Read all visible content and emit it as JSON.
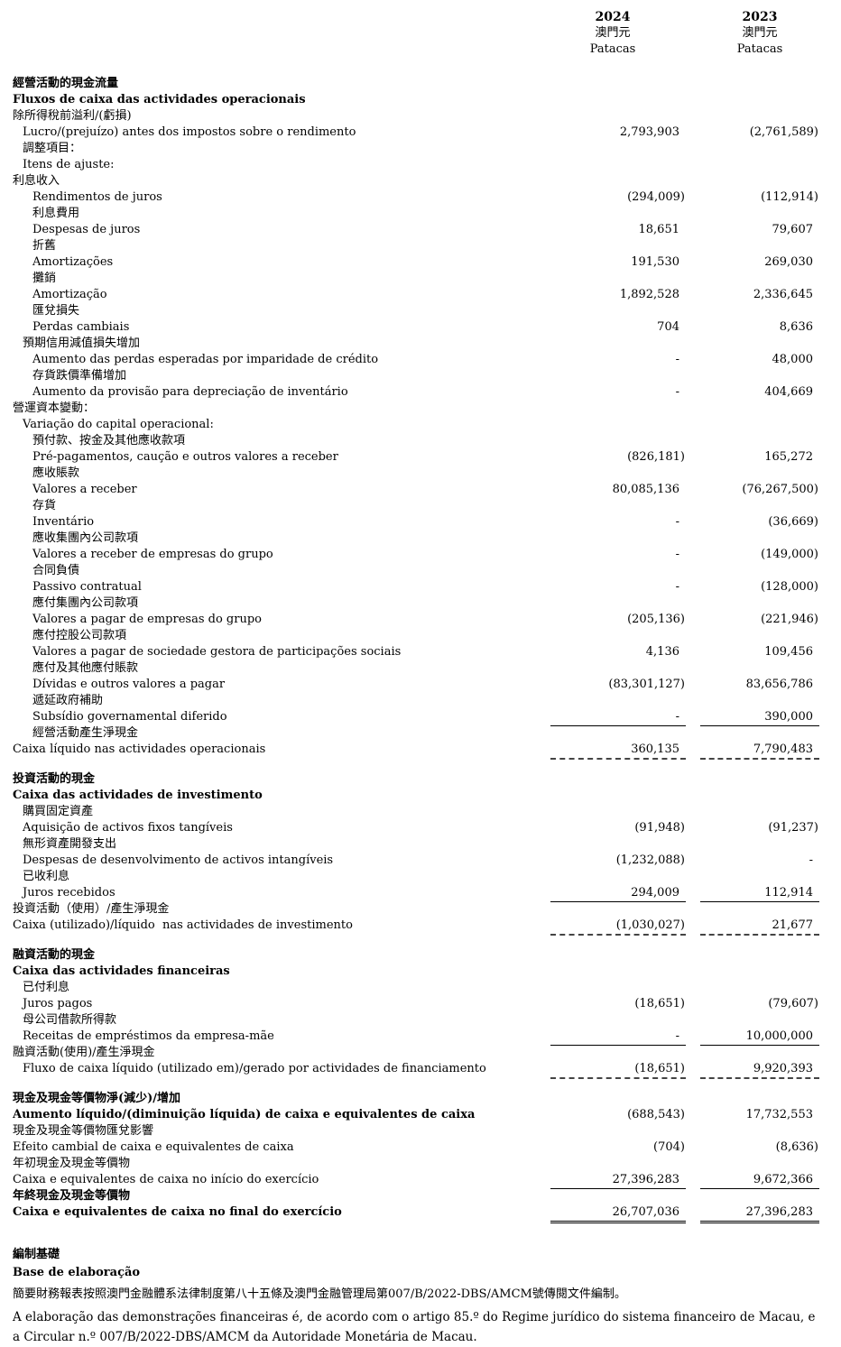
{
  "header": {
    "columns": [
      {
        "year": "2024",
        "currency_zh": "澳門元",
        "currency_en": "Patacas"
      },
      {
        "year": "2023",
        "currency_zh": "澳門元",
        "currency_en": "Patacas"
      }
    ]
  },
  "statement": {
    "rows": [
      {
        "label": "經營活動的現金流量",
        "indent": 0,
        "bold": true
      },
      {
        "label": "Fluxos de caixa das actividades operacionais",
        "indent": 0,
        "bold": true
      },
      {
        "label": "除所得稅前溢利/(虧損)",
        "indent": 0
      },
      {
        "label": "Lucro/(prejuízo) antes dos impostos sobre o rendimento",
        "indent": 1,
        "v1": "2,793,903",
        "v2": "(2,761,589)"
      },
      {
        "label": "調整項目：",
        "indent": 1
      },
      {
        "label": "Itens de ajuste:",
        "indent": 1
      },
      {
        "label": "利息收入",
        "indent": 0
      },
      {
        "label": "Rendimentos de juros",
        "indent": 2,
        "v1": "(294,009)",
        "v2": "(112,914)"
      },
      {
        "label": "利息費用",
        "indent": 2
      },
      {
        "label": "Despesas de juros",
        "indent": 2,
        "v1": "18,651",
        "v2": "79,607"
      },
      {
        "label": "折舊",
        "indent": 2
      },
      {
        "label": "Amortizações",
        "indent": 2,
        "v1": "191,530",
        "v2": "269,030"
      },
      {
        "label": "攤銷",
        "indent": 2
      },
      {
        "label": "Amortização",
        "indent": 2,
        "v1": "1,892,528",
        "v2": "2,336,645"
      },
      {
        "label": "匯兌損失",
        "indent": 2
      },
      {
        "label": "Perdas cambiais",
        "indent": 2,
        "v1": "704",
        "v2": "8,636"
      },
      {
        "label": "預期信用減值損失增加",
        "indent": 1
      },
      {
        "label": "Aumento das perdas esperadas por imparidade de crédito",
        "indent": 2,
        "v1": "-",
        "v2": "48,000"
      },
      {
        "label": "存貨跌價準備增加",
        "indent": 2
      },
      {
        "label": "Aumento da provisão para depreciação de inventário",
        "indent": 2,
        "v1": "-",
        "v2": "404,669"
      },
      {
        "label": "營運資本變動：",
        "indent": 0
      },
      {
        "label": "Variação do capital operacional:",
        "indent": 1
      },
      {
        "label": "預付款、按金及其他應收款項",
        "indent": 2
      },
      {
        "label": "Pré-pagamentos, caução e outros valores a receber",
        "indent": 2,
        "v1": "(826,181)",
        "v2": "165,272"
      },
      {
        "label": "應收賬款",
        "indent": 2
      },
      {
        "label": "Valores a receber",
        "indent": 2,
        "v1": "80,085,136",
        "v2": "(76,267,500)"
      },
      {
        "label": "存貨",
        "indent": 2
      },
      {
        "label": "Inventário",
        "indent": 2,
        "v1": "-",
        "v2": "(36,669)"
      },
      {
        "label": "應收集團內公司款項",
        "indent": 2
      },
      {
        "label": "Valores a receber de empresas do grupo",
        "indent": 2,
        "v1": "-",
        "v2": "(149,000)"
      },
      {
        "label": "合同負債",
        "indent": 2
      },
      {
        "label": "Passivo contratual",
        "indent": 2,
        "v1": "-",
        "v2": "(128,000)"
      },
      {
        "label": "應付集團內公司款項",
        "indent": 2
      },
      {
        "label": "Valores a pagar de empresas do grupo",
        "indent": 2,
        "v1": "(205,136)",
        "v2": "(221,946)"
      },
      {
        "label": "應付控股公司款項",
        "indent": 2
      },
      {
        "label": "Valores a pagar de sociedade gestora de participações sociais",
        "indent": 2,
        "v1": "4,136",
        "v2": "109,456"
      },
      {
        "label": "應付及其他應付賬款",
        "indent": 2
      },
      {
        "label": "Dívidas e outros valores a pagar",
        "indent": 2,
        "v1": "(83,301,127)",
        "v2": "83,656,786"
      },
      {
        "label": "遞延政府補助",
        "indent": 2
      },
      {
        "label": "Subsídio governamental diferido",
        "indent": 2,
        "v1": "-",
        "v2": "390,000",
        "rule": "solid"
      },
      {
        "label": "經營活動產生淨現金",
        "indent": 2
      },
      {
        "label": "Caixa líquido nas actividades operacionais",
        "indent": 0,
        "v1": "360,135",
        "v2": "7,790,483",
        "rule": "dashed"
      },
      {
        "label": "投資活動的現金",
        "indent": 0,
        "bold": true,
        "gap": true
      },
      {
        "label": "Caixa das actividades de investimento",
        "indent": 0,
        "bold": true
      },
      {
        "label": "購買固定資產",
        "indent": 1
      },
      {
        "label": "Aquisição de activos fixos tangíveis",
        "indent": 1,
        "v1": "(91,948)",
        "v2": "(91,237)"
      },
      {
        "label": "無形資產開發支出",
        "indent": 1
      },
      {
        "label": "Despesas de desenvolvimento de activos intangíveis",
        "indent": 1,
        "v1": "(1,232,088)",
        "v2": "-"
      },
      {
        "label": "已收利息",
        "indent": 1
      },
      {
        "label": "Juros recebidos",
        "indent": 1,
        "v1": "294,009",
        "v2": "112,914",
        "rule": "solid"
      },
      {
        "label": "投資活動（使用）/產生淨現金",
        "indent": 0
      },
      {
        "label": "Caixa (utilizado)/líquido  nas actividades de investimento",
        "indent": 0,
        "v1": "(1,030,027)",
        "v2": "21,677",
        "rule": "dashed"
      },
      {
        "label": "融資活動的現金",
        "indent": 0,
        "bold": true,
        "gap": true
      },
      {
        "label": "Caixa das actividades financeiras",
        "indent": 0,
        "bold": true
      },
      {
        "label": "已付利息",
        "indent": 1
      },
      {
        "label": "Juros pagos",
        "indent": 1,
        "v1": "(18,651)",
        "v2": "(79,607)"
      },
      {
        "label": "母公司借款所得款",
        "indent": 1
      },
      {
        "label": "Receitas de empréstimos da empresa-mãe",
        "indent": 1,
        "v1": "-",
        "v2": "10,000,000",
        "rule": "solid"
      },
      {
        "label": "融資活動(使用)/產生淨現金",
        "indent": 0
      },
      {
        "label": "Fluxo de caixa líquido (utilizado em)/gerado por actividades de financiamento",
        "indent": 1,
        "v1": "(18,651)",
        "v2": "9,920,393",
        "rule": "dashed"
      },
      {
        "label": "現金及現金等價物淨(減少)/增加",
        "indent": 0,
        "bold": true,
        "gap": true
      },
      {
        "label": "Aumento líquido/(diminuição líquida) de caixa e equivalentes de caixa",
        "indent": 0,
        "bold": true,
        "v1": "(688,543)",
        "v2": "17,732,553"
      },
      {
        "label": "現金及現金等價物匯兌影響",
        "indent": 0
      },
      {
        "label": "Efeito cambial de caixa e equivalentes de caixa",
        "indent": 0,
        "v1": "(704)",
        "v2": "(8,636)"
      },
      {
        "label": "年初現金及現金等價物",
        "indent": 0
      },
      {
        "label": "Caixa e equivalentes de caixa no início do exercício",
        "indent": 0,
        "v1": "27,396,283",
        "v2": "9,672,366",
        "rule": "solid"
      },
      {
        "label": "年終現金及現金等價物",
        "indent": 0,
        "bold": true
      },
      {
        "label": "Caixa e equivalentes de caixa no final do exercício",
        "indent": 0,
        "bold": true,
        "v1": "26,707,036",
        "v2": "27,396,283",
        "rule": "double"
      }
    ]
  },
  "notes": {
    "heading_zh": "編制基礎",
    "heading_pt": "Base de elaboração",
    "body_zh": "簡要財務報表按照澳門金融體系法律制度第八十五條及澳門金融管理局第007/B/2022-DBS/AMCM號傳閱文件編制。",
    "body_pt": "A elaboração das demonstrações financeiras é, de acordo com o artigo 85.º do Regime jurídico do sistema financeiro de Macau, e a Circular n.º 007/B/2022-DBS/AMCM da Autoridade Monetária de Macau."
  }
}
